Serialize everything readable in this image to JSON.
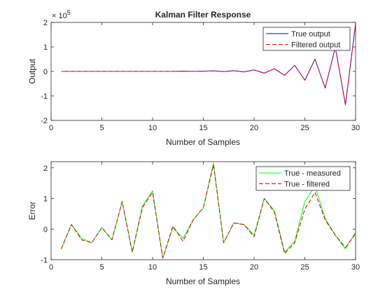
{
  "chart_data": [
    {
      "type": "line",
      "title": "Kalman Filter Response",
      "xlabel": "Number of Samples",
      "ylabel": "Output",
      "xlim": [
        0,
        30
      ],
      "ylim": [
        -2,
        2
      ],
      "xticks": [
        0,
        5,
        10,
        15,
        20,
        25,
        30
      ],
      "yticks": [
        -2,
        -1,
        0,
        1,
        2
      ],
      "xtick_labels": [
        "0",
        "5",
        "10",
        "15",
        "20",
        "25",
        "30"
      ],
      "ytick_labels": [
        "-2",
        "-1",
        "0",
        "1",
        "2"
      ],
      "exponent_label": "× 10",
      "exponent_power": "5",
      "legend_position": "top-right",
      "grid": false,
      "x": [
        1,
        2,
        3,
        4,
        5,
        6,
        7,
        8,
        9,
        10,
        11,
        12,
        13,
        14,
        15,
        16,
        17,
        18,
        19,
        20,
        21,
        22,
        23,
        24,
        25,
        26,
        27,
        28,
        29,
        30
      ],
      "series": [
        {
          "name": "True output",
          "color": "#0000ff",
          "dash": "solid",
          "values": [
            0,
            0,
            0,
            0,
            0,
            0,
            0,
            0,
            0,
            0,
            0,
            0,
            0.01,
            0,
            0.01,
            0.02,
            -0.01,
            0.03,
            -0.02,
            0.06,
            -0.07,
            0.11,
            -0.16,
            0.25,
            -0.36,
            0.5,
            -0.68,
            0.98,
            -1.36,
            1.95
          ]
        },
        {
          "name": "Filtered output",
          "color": "#ff0000",
          "dash": "dashed",
          "values": [
            0,
            0,
            0,
            0,
            0,
            0,
            0,
            0,
            0,
            0,
            0,
            0,
            0.01,
            0,
            0.01,
            0.02,
            -0.01,
            0.03,
            -0.02,
            0.06,
            -0.07,
            0.11,
            -0.16,
            0.25,
            -0.36,
            0.5,
            -0.68,
            0.98,
            -1.36,
            1.95
          ]
        }
      ]
    },
    {
      "type": "line",
      "title": "",
      "xlabel": "Number of Samples",
      "ylabel": "Error",
      "xlim": [
        0,
        30
      ],
      "ylim": [
        -1,
        2.2
      ],
      "xticks": [
        0,
        5,
        10,
        15,
        20,
        25,
        30
      ],
      "yticks": [
        -1,
        0,
        1,
        2
      ],
      "xtick_labels": [
        "0",
        "5",
        "10",
        "15",
        "20",
        "25",
        "30"
      ],
      "ytick_labels": [
        "-1",
        "0",
        "1",
        "2"
      ],
      "legend_position": "top-right",
      "grid": false,
      "x": [
        1,
        2,
        3,
        4,
        5,
        6,
        7,
        8,
        9,
        10,
        11,
        12,
        13,
        14,
        15,
        16,
        17,
        18,
        19,
        20,
        21,
        22,
        23,
        24,
        25,
        26,
        27,
        28,
        29,
        30
      ],
      "series": [
        {
          "name": "True - measured",
          "color": "#00ff00",
          "dash": "solid",
          "values": [
            -0.65,
            0.15,
            -0.3,
            -0.45,
            0.05,
            -0.35,
            0.9,
            -0.75,
            0.75,
            1.25,
            -0.95,
            0.05,
            -0.3,
            0.3,
            0.7,
            2.15,
            -0.45,
            0.2,
            0.15,
            -0.2,
            1.0,
            0.6,
            -0.75,
            -0.4,
            0.9,
            1.4,
            0.35,
            -0.2,
            -0.65,
            -0.1
          ]
        },
        {
          "name": "True - filtered",
          "color": "#cc0000",
          "dash": "dashed",
          "values": [
            -0.65,
            0.15,
            -0.35,
            -0.45,
            0.05,
            -0.35,
            0.9,
            -0.75,
            0.7,
            1.2,
            -0.95,
            0.1,
            -0.4,
            0.3,
            0.7,
            2.1,
            -0.45,
            0.2,
            0.15,
            -0.25,
            1.0,
            0.55,
            -0.8,
            -0.45,
            0.65,
            1.2,
            0.3,
            -0.2,
            -0.6,
            -0.15
          ]
        }
      ]
    }
  ]
}
